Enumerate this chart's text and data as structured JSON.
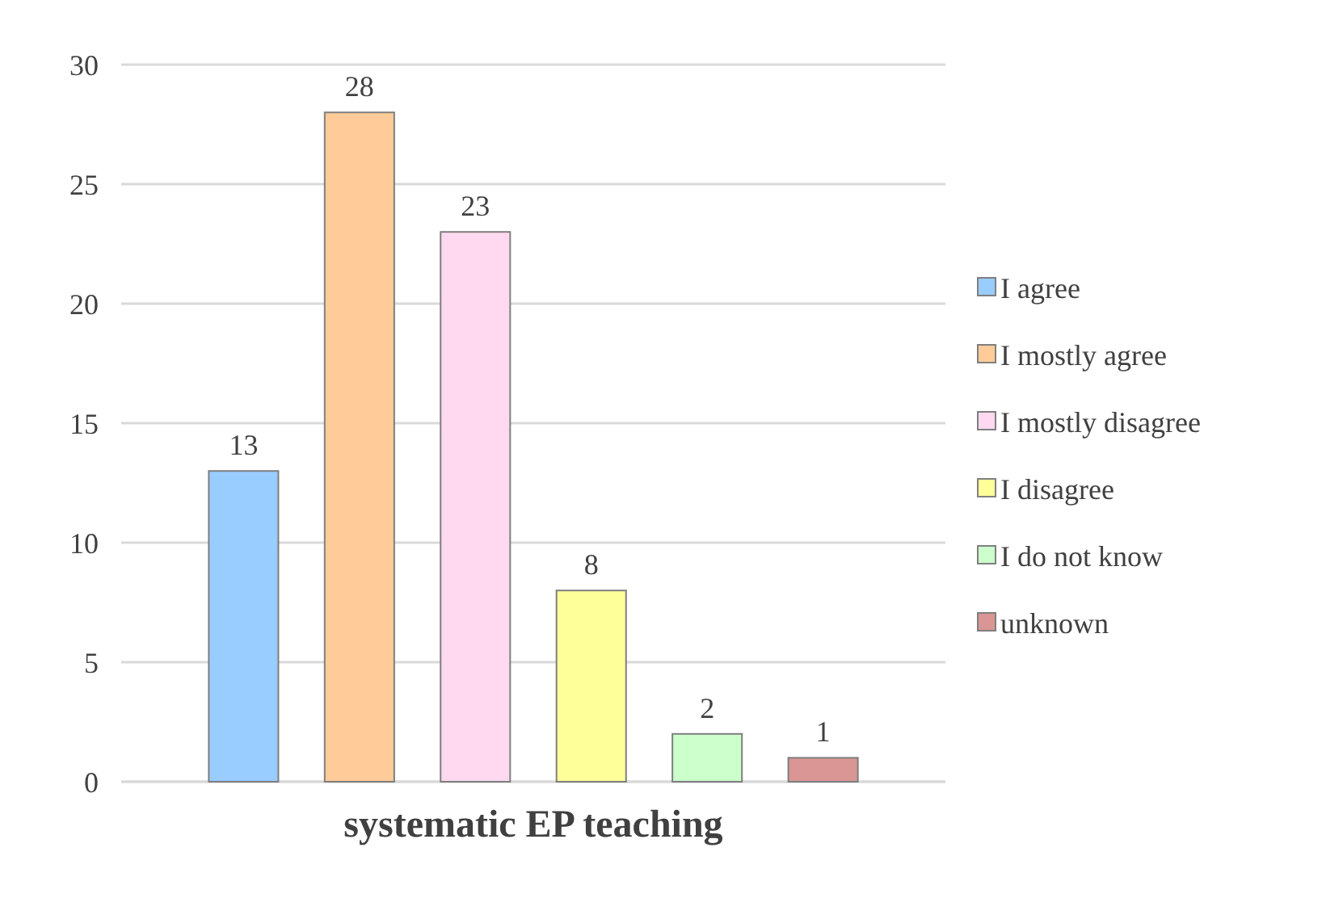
{
  "chart_data": {
    "type": "bar",
    "categories": [
      "systematic EP teaching"
    ],
    "series": [
      {
        "name": "I agree",
        "color": "#99ccff",
        "values": [
          13
        ]
      },
      {
        "name": "I mostly agree",
        "color": "#ffcc99",
        "values": [
          28
        ]
      },
      {
        "name": "I mostly disagree",
        "color": "#ffd9f0",
        "values": [
          23
        ]
      },
      {
        "name": "I disagree",
        "color": "#ffff99",
        "values": [
          8
        ]
      },
      {
        "name": "I do not know",
        "color": "#ccffcc",
        "values": [
          2
        ]
      },
      {
        "name": "unknown",
        "color": "#d99694",
        "values": [
          1
        ]
      }
    ],
    "ylim": [
      0,
      30
    ],
    "yticks": [
      0,
      5,
      10,
      15,
      20,
      25,
      30
    ],
    "grid": "y",
    "legend": "right",
    "data_labels": true
  }
}
